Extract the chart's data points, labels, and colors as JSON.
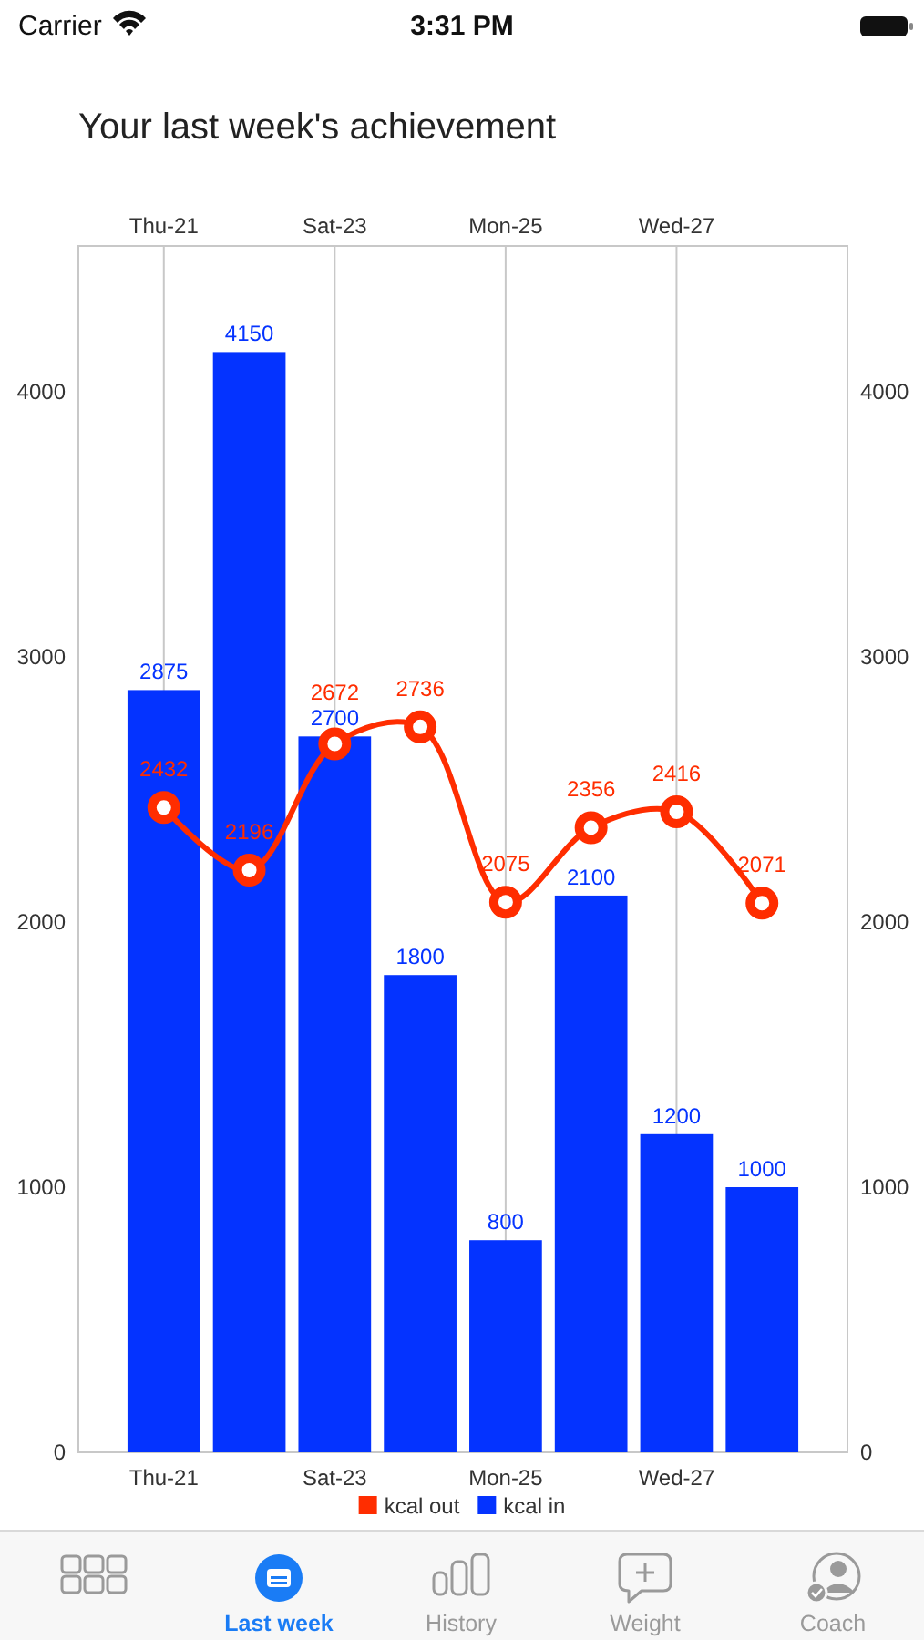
{
  "chart_data": {
    "type": "bar",
    "title": "Your last week's achievement",
    "categories": [
      "Thu-21",
      null,
      "Sat-23",
      null,
      "Mon-25",
      null,
      "Wed-27",
      null
    ],
    "series": [
      {
        "name": "kcal out",
        "type": "line",
        "color": "#ff2d00",
        "values": [
          2432,
          2196,
          2672,
          2736,
          2075,
          2356,
          2416,
          2071
        ]
      },
      {
        "name": "kcal in",
        "color": "#0433ff",
        "values": [
          2875,
          4150,
          2700,
          1800,
          800,
          2100,
          1200,
          1000
        ]
      }
    ],
    "ylim": [
      0,
      4550
    ],
    "yticks": [
      0,
      1000,
      2000,
      3000,
      4000
    ],
    "y2lim": [
      0,
      4550
    ],
    "y2ticks": [
      0,
      1000,
      2000,
      3000,
      4000
    ],
    "grid": "x",
    "legend": "bottom",
    "data_labels": true,
    "marker": "circle",
    "annotations": [
      "Carrier",
      "3:31 PM",
      "Last week",
      "History",
      "Weight",
      "Coach"
    ]
  }
}
